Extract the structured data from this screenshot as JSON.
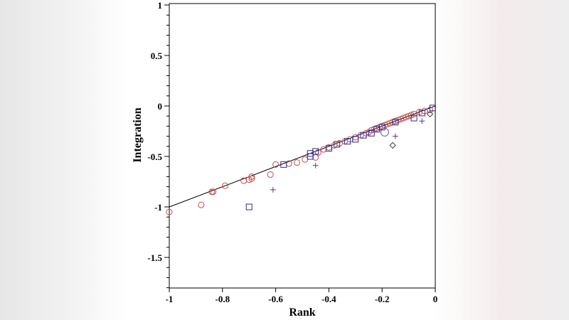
{
  "chart_data": {
    "type": "scatter",
    "xlabel": "Rank",
    "ylabel": "Integration",
    "xlim": [
      -1,
      0
    ],
    "ylim": [
      -1.8,
      1
    ],
    "xticks": [
      "-1",
      "-0.8",
      "-0.6",
      "-0.4",
      "-0.2",
      "0"
    ],
    "yticks": [
      "1",
      "0.5",
      "0",
      "-0.5",
      "-1",
      "-1.5"
    ],
    "grid": false,
    "reference_line": {
      "x": [
        -1,
        0
      ],
      "y": [
        -1,
        0
      ],
      "color": "#000000"
    },
    "series": [
      {
        "marker": "circle",
        "color": "#c0504d",
        "points": [
          [
            -1,
            -1.05
          ],
          [
            -0.88,
            -0.98
          ],
          [
            -0.84,
            -0.85
          ],
          [
            -0.835,
            -0.85
          ],
          [
            -0.79,
            -0.79
          ],
          [
            -0.72,
            -0.74
          ],
          [
            -0.7,
            -0.73
          ],
          [
            -0.69,
            -0.7
          ],
          [
            -0.69,
            -0.72
          ],
          [
            -0.62,
            -0.68
          ],
          [
            -0.6,
            -0.58
          ],
          [
            -0.55,
            -0.57
          ],
          [
            -0.52,
            -0.56
          ],
          [
            -0.49,
            -0.53
          ],
          [
            -0.45,
            -0.51
          ],
          [
            -0.44,
            -0.46
          ],
          [
            -0.42,
            -0.43
          ],
          [
            -0.4,
            -0.41
          ],
          [
            -0.38,
            -0.39
          ],
          [
            -0.36,
            -0.37
          ],
          [
            -0.34,
            -0.35
          ],
          [
            -0.32,
            -0.33
          ],
          [
            -0.3,
            -0.31
          ],
          [
            -0.28,
            -0.29
          ],
          [
            -0.26,
            -0.27
          ],
          [
            -0.25,
            -0.26
          ],
          [
            -0.24,
            -0.24
          ],
          [
            -0.23,
            -0.23
          ],
          [
            -0.22,
            -0.22
          ],
          [
            -0.21,
            -0.21
          ],
          [
            -0.2,
            -0.2
          ],
          [
            -0.19,
            -0.19
          ],
          [
            -0.18,
            -0.18
          ],
          [
            -0.17,
            -0.17
          ],
          [
            -0.16,
            -0.16
          ],
          [
            -0.15,
            -0.15
          ],
          [
            -0.14,
            -0.14
          ],
          [
            -0.13,
            -0.13
          ],
          [
            -0.12,
            -0.12
          ],
          [
            -0.11,
            -0.11
          ],
          [
            -0.1,
            -0.1
          ],
          [
            -0.09,
            -0.09
          ],
          [
            -0.08,
            -0.08
          ],
          [
            -0.06,
            -0.06
          ],
          [
            -0.04,
            -0.05
          ],
          [
            -0.02,
            -0.04
          ]
        ]
      },
      {
        "marker": "circle-large",
        "color": "#5a5ab0",
        "points": [
          [
            -0.19,
            -0.26
          ]
        ]
      },
      {
        "marker": "square",
        "color": "#2b2b9a",
        "points": [
          [
            -0.7,
            -1.0
          ],
          [
            -0.57,
            -0.58
          ],
          [
            -0.47,
            -0.5
          ],
          [
            -0.47,
            -0.47
          ],
          [
            -0.45,
            -0.45
          ],
          [
            -0.4,
            -0.42
          ],
          [
            -0.37,
            -0.38
          ],
          [
            -0.33,
            -0.35
          ],
          [
            -0.3,
            -0.33
          ],
          [
            -0.27,
            -0.29
          ],
          [
            -0.24,
            -0.27
          ],
          [
            -0.22,
            -0.23
          ],
          [
            -0.2,
            -0.21
          ],
          [
            -0.15,
            -0.16
          ],
          [
            -0.08,
            -0.12
          ],
          [
            -0.05,
            -0.07
          ],
          [
            -0.01,
            -0.02
          ]
        ]
      },
      {
        "marker": "plus",
        "color": "#5a3a8a",
        "points": [
          [
            -0.61,
            -0.83
          ],
          [
            -0.45,
            -0.59
          ],
          [
            -0.15,
            -0.3
          ],
          [
            -0.05,
            -0.15
          ]
        ]
      },
      {
        "marker": "diamond",
        "color": "#444444",
        "points": [
          [
            -0.16,
            -0.39
          ],
          [
            -0.02,
            -0.08
          ]
        ]
      }
    ]
  }
}
